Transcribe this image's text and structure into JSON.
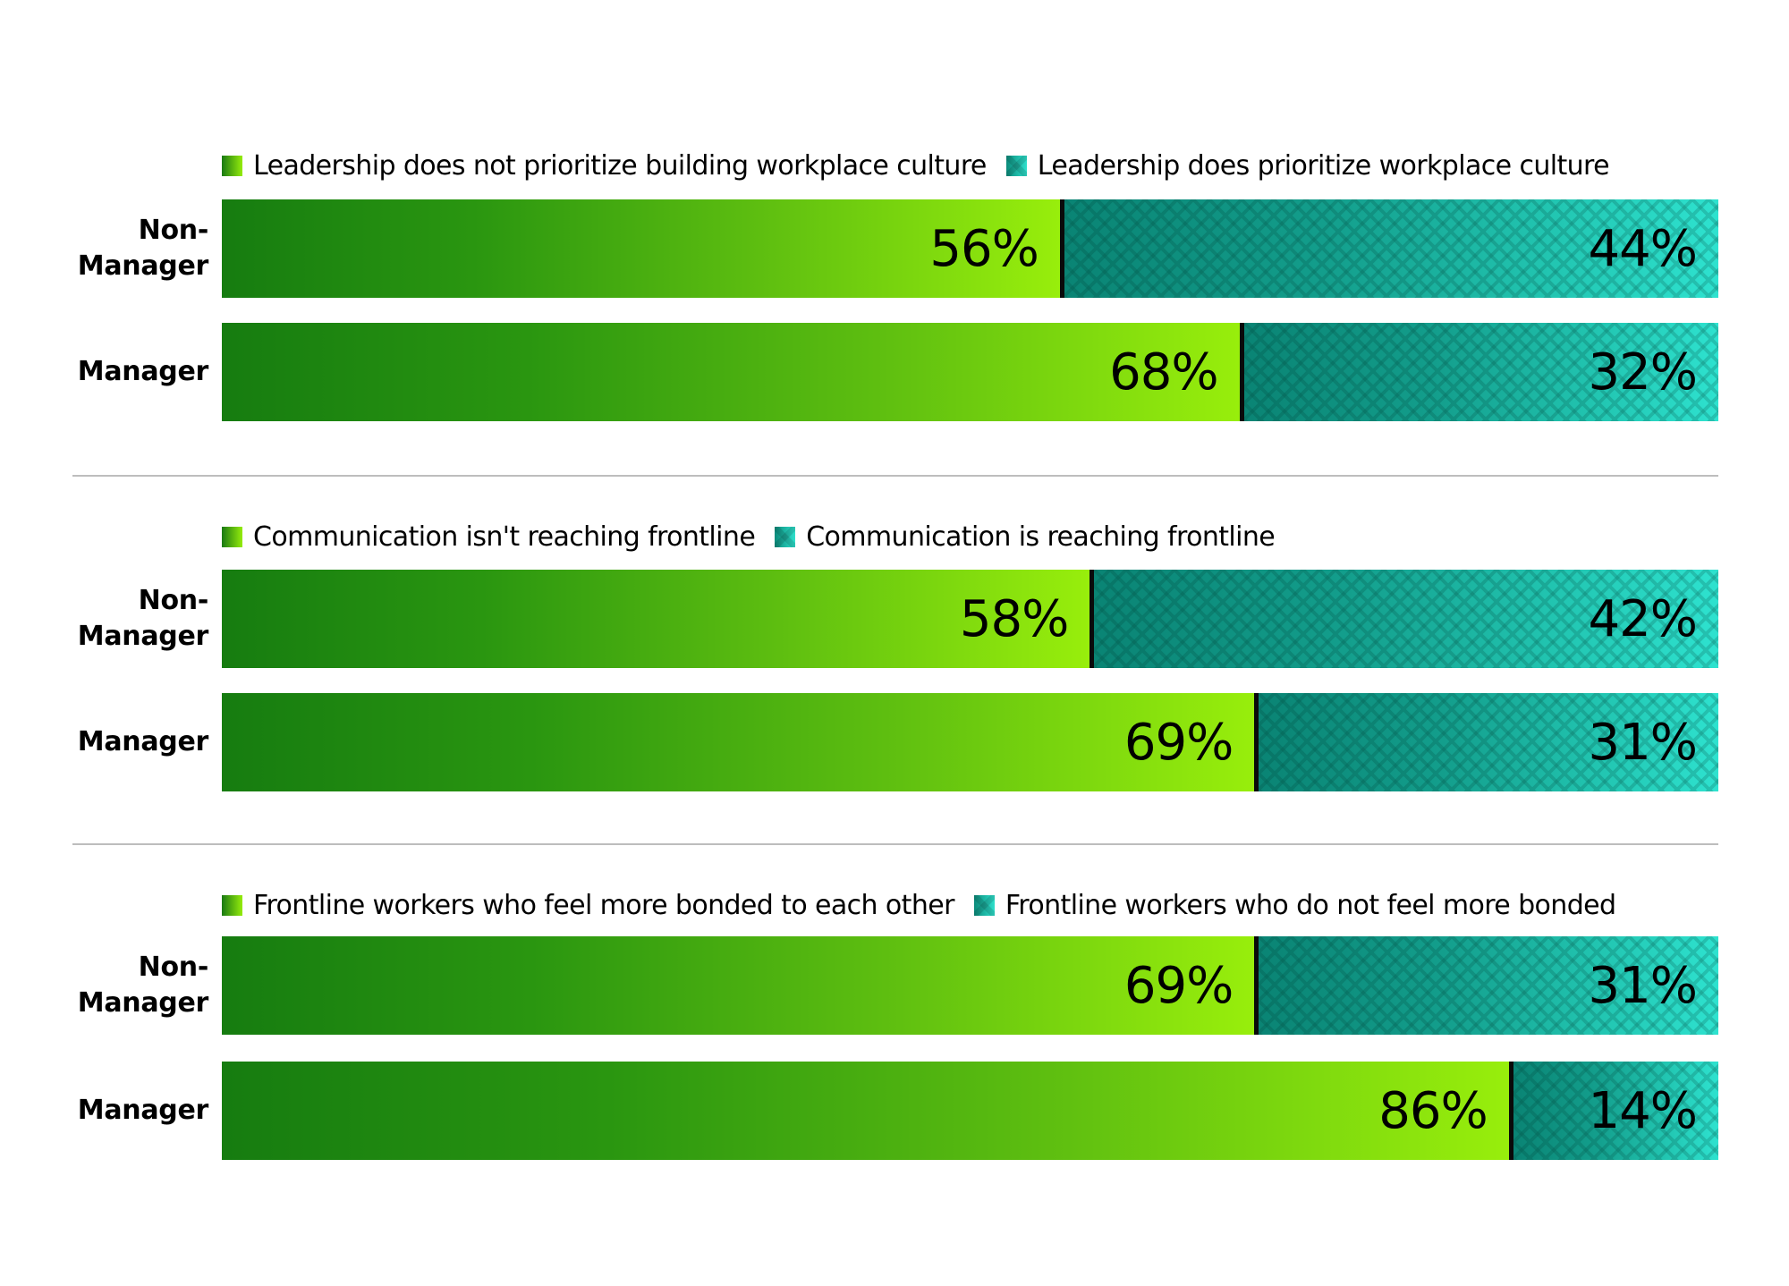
{
  "chart_data": {
    "type": "bar",
    "orientation": "horizontal",
    "stacked": true,
    "percent_scale": [
      0,
      100
    ],
    "categories": [
      "Non-Manager",
      "Manager"
    ],
    "colors": {
      "first_series_gradient": [
        "#167c10",
        "#98ee0c"
      ],
      "second_series_gradient": [
        "#0a8474",
        "#2ee2cf"
      ],
      "segment_divider": "#0a0a0a",
      "group_divider": "#bdbdbd"
    },
    "panels": [
      {
        "legend": [
          "Leadership does not prioritize building workplace culture",
          "Leadership does prioritize workplace culture"
        ],
        "rows": [
          {
            "label_lines": [
              "Non-",
              "Manager"
            ],
            "values": [
              56,
              44
            ],
            "labels": [
              "56%",
              "44%"
            ]
          },
          {
            "label_lines": [
              "Manager"
            ],
            "values": [
              68,
              32
            ],
            "labels": [
              "68%",
              "32%"
            ]
          }
        ]
      },
      {
        "legend": [
          "Communication isn't reaching frontline",
          "Communication is reaching frontline"
        ],
        "rows": [
          {
            "label_lines": [
              "Non-",
              "Manager"
            ],
            "values": [
              58,
              42
            ],
            "labels": [
              "58%",
              "42%"
            ]
          },
          {
            "label_lines": [
              "Manager"
            ],
            "values": [
              69,
              31
            ],
            "labels": [
              "69%",
              "31%"
            ]
          }
        ]
      },
      {
        "legend": [
          "Frontline workers who feel more bonded to each other",
          "Frontline workers who do not feel more bonded"
        ],
        "rows": [
          {
            "label_lines": [
              "Non-",
              "Manager"
            ],
            "values": [
              69,
              31
            ],
            "labels": [
              "69%",
              "31%"
            ]
          },
          {
            "label_lines": [
              "Manager"
            ],
            "values": [
              86,
              14
            ],
            "labels": [
              "86%",
              "14%"
            ]
          }
        ]
      }
    ],
    "title": "",
    "xlabel": "",
    "ylabel": "",
    "grid": false,
    "legend_position": "top-left of each panel"
  }
}
